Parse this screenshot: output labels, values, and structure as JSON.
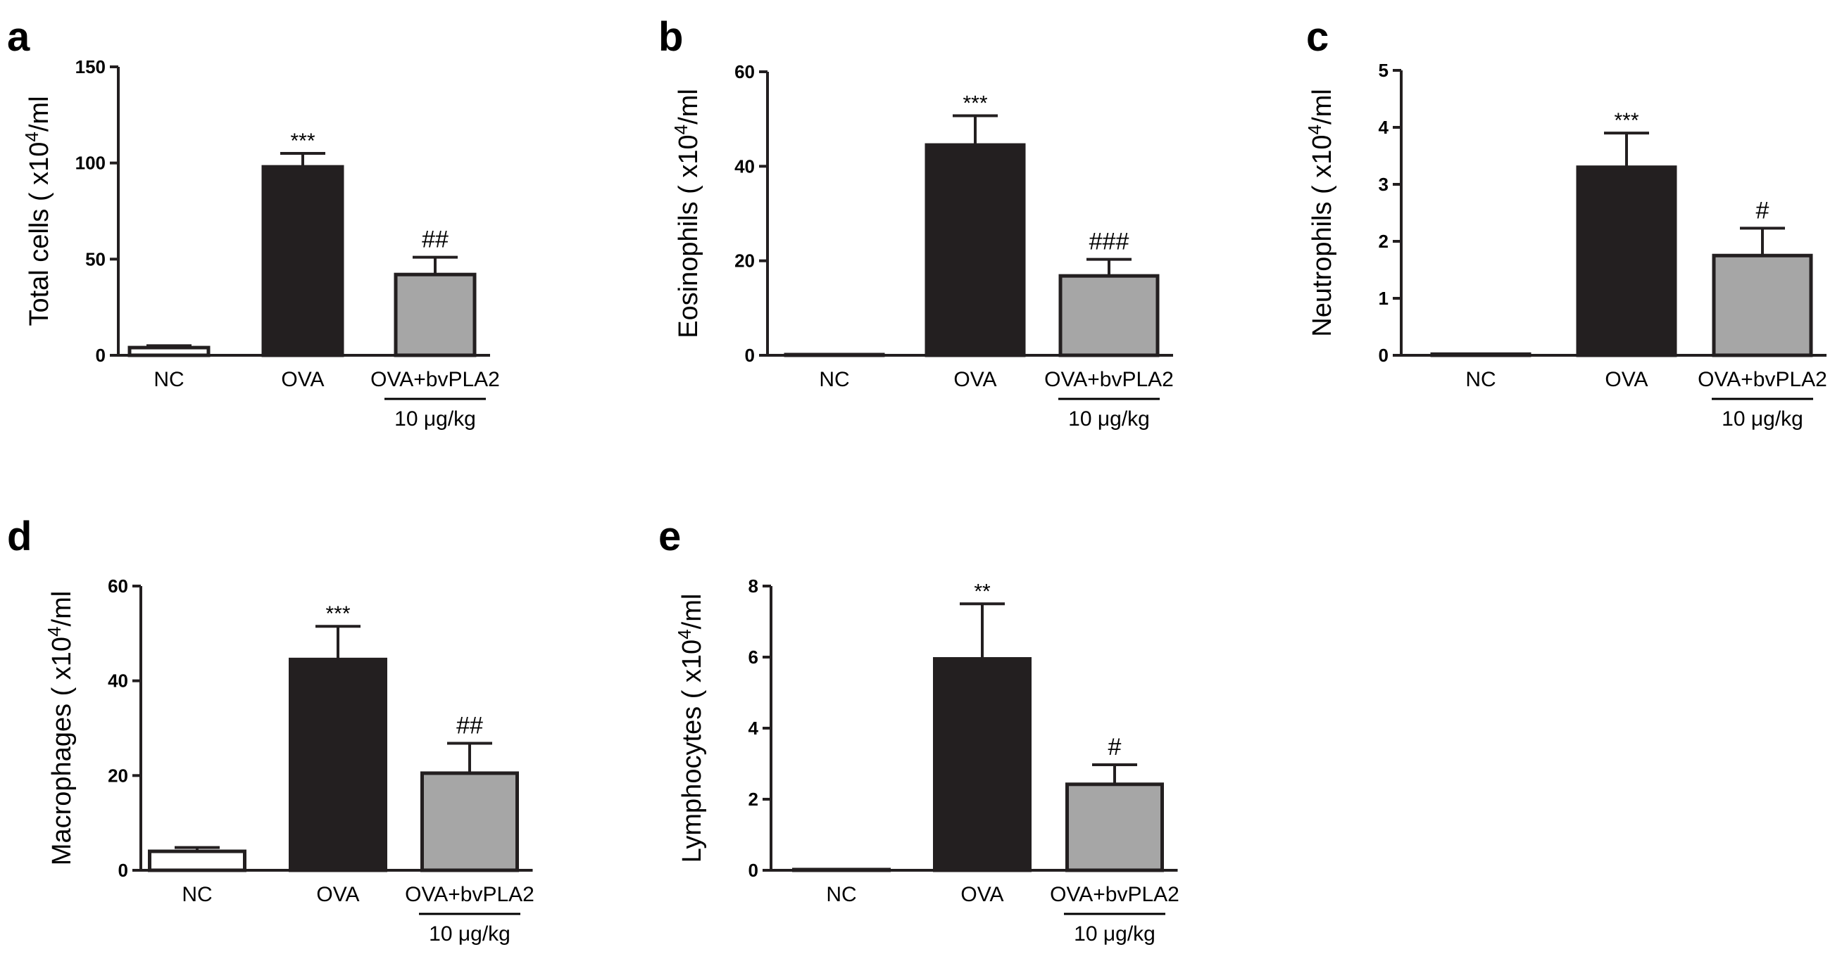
{
  "figure": {
    "colors": {
      "nc": "#ffffff",
      "ova": "#231f20",
      "bvpla2": "#a6a6a6",
      "axis": "#231f20"
    },
    "unit_base": "x10",
    "unit_exp": "4",
    "unit_suffix": "/ml"
  },
  "chart_data": [
    {
      "type": "bar",
      "panel": "a",
      "ylabel": "Total cells",
      "ylabel_has_unit_paren": true,
      "ylabel_paren_close": false,
      "categories": [
        "NC",
        "OVA",
        "OVA+bvPLA2"
      ],
      "dose_label": "10 μg/kg",
      "values": [
        4,
        98,
        42
      ],
      "errors": [
        1,
        7,
        9
      ],
      "significance": [
        "",
        "***",
        "##"
      ],
      "ylim": [
        0,
        150
      ],
      "yticks": [
        0,
        50,
        100,
        150
      ]
    },
    {
      "type": "bar",
      "panel": "b",
      "ylabel": "Eosinophils",
      "ylabel_has_unit_paren": true,
      "ylabel_paren_close": false,
      "categories": [
        "NC",
        "OVA",
        "OVA+bvPLA2"
      ],
      "dose_label": "10 μg/kg",
      "values": [
        0,
        44.5,
        16.8
      ],
      "errors": [
        0,
        6.2,
        3.5
      ],
      "significance": [
        "",
        "***",
        "###"
      ],
      "ylim": [
        0,
        60
      ],
      "yticks": [
        0,
        20,
        40,
        60
      ]
    },
    {
      "type": "bar",
      "panel": "c",
      "ylabel": "Neutrophils",
      "ylabel_has_unit_paren": true,
      "ylabel_paren_close": false,
      "categories": [
        "NC",
        "OVA",
        "OVA+bvPLA2"
      ],
      "dose_label": "10 μg/kg",
      "values": [
        0.02,
        3.3,
        1.75
      ],
      "errors": [
        0,
        0.6,
        0.48
      ],
      "significance": [
        "",
        "***",
        "#"
      ],
      "ylim": [
        0,
        5
      ],
      "yticks": [
        0,
        1,
        2,
        3,
        4,
        5
      ]
    },
    {
      "type": "bar",
      "panel": "d",
      "ylabel": "Macrophages",
      "ylabel_has_unit_paren": true,
      "ylabel_paren_close": false,
      "categories": [
        "NC",
        "OVA",
        "OVA+bvPLA2"
      ],
      "dose_label": "10 μg/kg",
      "values": [
        4,
        44.5,
        20.5
      ],
      "errors": [
        0.8,
        7,
        6.3
      ],
      "significance": [
        "",
        "***",
        "##"
      ],
      "ylim": [
        0,
        60
      ],
      "yticks": [
        0,
        20,
        40,
        60
      ]
    },
    {
      "type": "bar",
      "panel": "e",
      "ylabel": "Lymphocytes",
      "ylabel_has_unit_paren": true,
      "ylabel_paren_close": false,
      "categories": [
        "NC",
        "OVA",
        "OVA+bvPLA2"
      ],
      "dose_label": "10 μg/kg",
      "values": [
        0.02,
        5.95,
        2.42
      ],
      "errors": [
        0,
        1.55,
        0.55
      ],
      "significance": [
        "",
        "**",
        "#"
      ],
      "ylim": [
        0,
        8
      ],
      "yticks": [
        0,
        2,
        4,
        6,
        8
      ]
    }
  ]
}
